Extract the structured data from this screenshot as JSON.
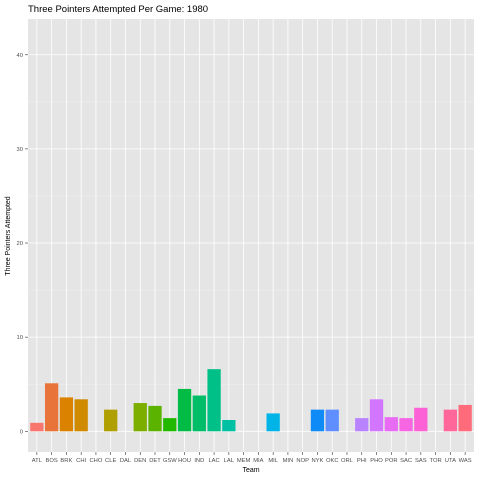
{
  "chart_data": {
    "type": "bar",
    "title": "Three Pointers Attempted Per Game: 1980",
    "xlabel": "Team",
    "ylabel": "Three Pointers Attempted",
    "ylim": [
      -2.2,
      43.8
    ],
    "yticks": [
      0,
      10,
      20,
      30,
      40
    ],
    "grid": true,
    "legend": "none",
    "colors": {
      "panel_background": "#e5e5e5",
      "grid": "#ffffff"
    },
    "categories": [
      "ATL",
      "BOS",
      "BRK",
      "CHI",
      "CHO",
      "CLE",
      "DAL",
      "DEN",
      "DET",
      "GSW",
      "HOU",
      "IND",
      "LAC",
      "LAL",
      "MEM",
      "MIA",
      "MIL",
      "MIN",
      "NOP",
      "NYK",
      "OKC",
      "ORL",
      "PHI",
      "PHO",
      "POR",
      "SAC",
      "SAS",
      "TOR",
      "UTA",
      "WAS"
    ],
    "values": [
      0.9,
      5.1,
      3.6,
      3.4,
      0,
      2.3,
      0,
      3.0,
      2.7,
      1.4,
      4.5,
      3.8,
      6.6,
      1.2,
      0,
      0,
      1.9,
      0,
      0,
      2.3,
      2.3,
      0,
      1.4,
      3.4,
      1.5,
      1.4,
      2.5,
      0,
      2.3,
      2.8
    ],
    "bar_colors": [
      "#F8766D",
      "#E8743A",
      "#DB8200",
      "#CF8A00",
      "#BF9600",
      "#AF9F00",
      "#9AA800",
      "#7CAE00",
      "#5BB300",
      "#22B800",
      "#00BC45",
      "#00BE67",
      "#00C087",
      "#00C0A3",
      "#00BFBC",
      "#00BAD4",
      "#00B4E8",
      "#00A5FF",
      "#1C91FF",
      "#0F8BF8",
      "#5F8FFF",
      "#8F84FF",
      "#B983FF",
      "#D376FF",
      "#E76BF3",
      "#F665E2",
      "#FC61D5",
      "#FF63B6",
      "#FF6699",
      "#FF6B7A"
    ]
  }
}
